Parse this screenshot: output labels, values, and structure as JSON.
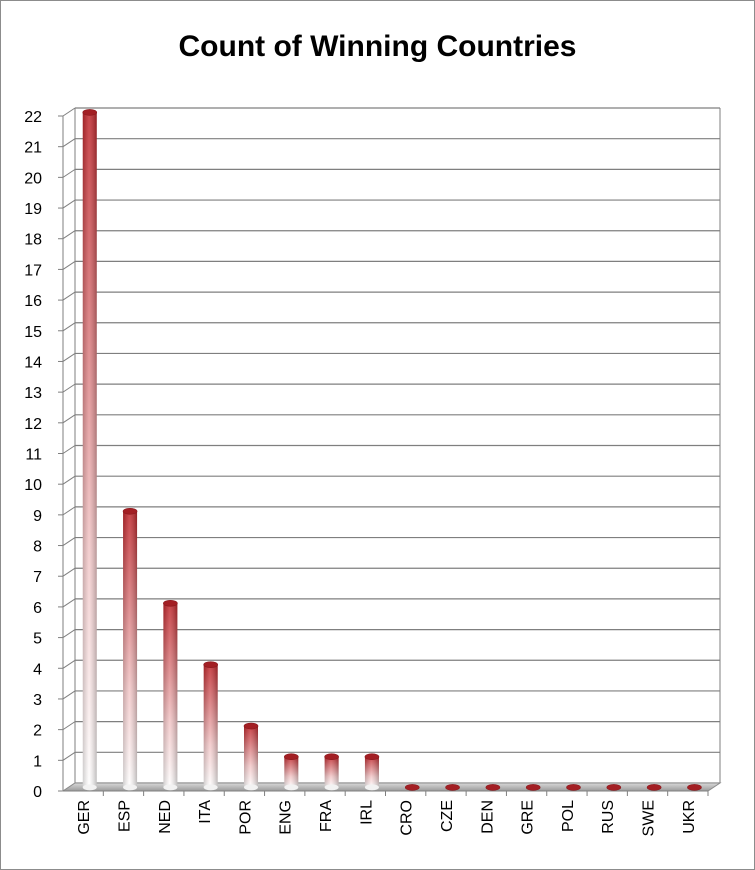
{
  "chart_data": {
    "type": "bar",
    "title": "Count of Winning Countries",
    "xlabel": "",
    "ylabel": "",
    "categories": [
      "GER",
      "ESP",
      "NED",
      "ITA",
      "POR",
      "ENG",
      "FRA",
      "IRL",
      "CRO",
      "CZE",
      "DEN",
      "GRE",
      "POL",
      "RUS",
      "SWE",
      "UKR"
    ],
    "values": [
      22,
      9,
      6,
      4,
      2,
      1,
      1,
      1,
      0,
      0,
      0,
      0,
      0,
      0,
      0,
      0
    ],
    "ylim": [
      0,
      22
    ],
    "yticks": [
      0,
      1,
      2,
      3,
      4,
      5,
      6,
      7,
      8,
      9,
      10,
      11,
      12,
      13,
      14,
      15,
      16,
      17,
      18,
      19,
      20,
      21,
      22
    ],
    "grid": true,
    "legend": "none",
    "style": "3d-cylinder",
    "colors": {
      "bar_top": "#c0282d",
      "bar_bottom": "#ffffff",
      "grid": "#7f7f7f",
      "floor": "#a6a6a6"
    }
  }
}
